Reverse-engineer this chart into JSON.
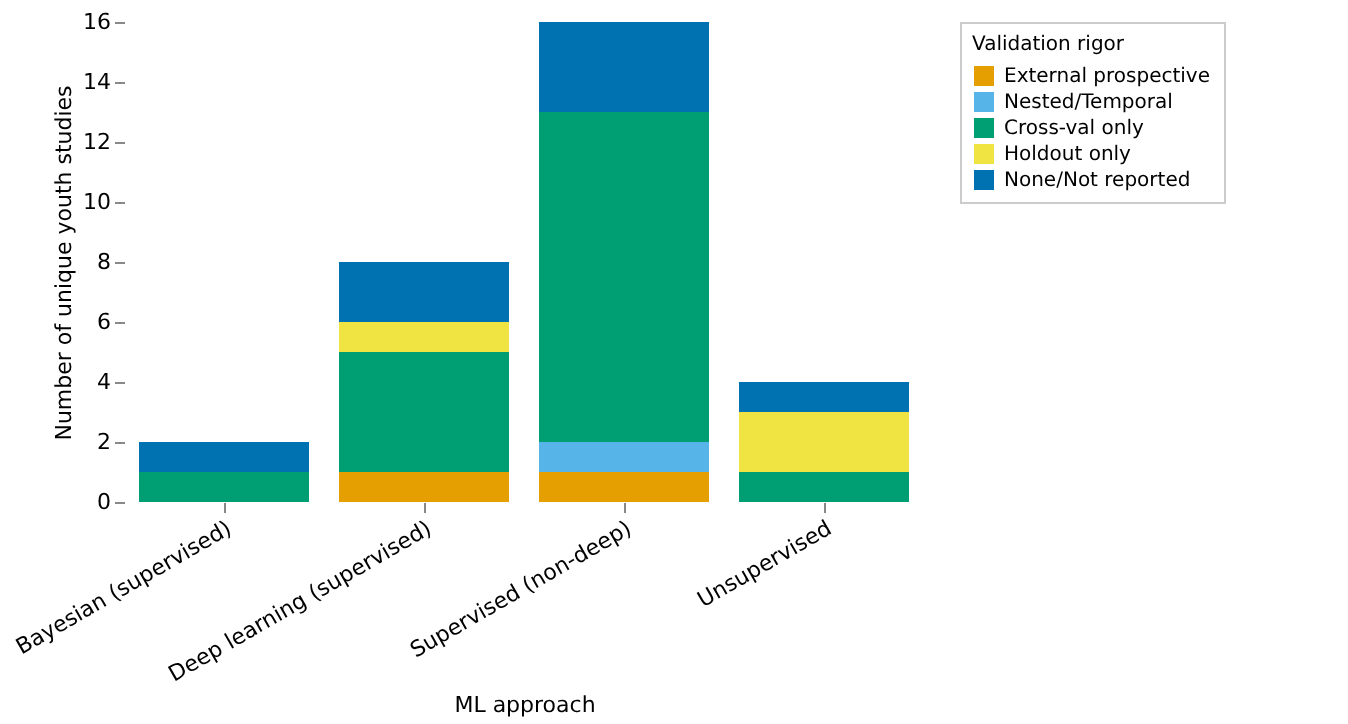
{
  "chart_data": {
    "type": "bar",
    "stacked": true,
    "xlabel": "ML approach",
    "ylabel": "Number of unique youth studies",
    "legend_title": "Validation rigor",
    "legend": "top right",
    "grid": false,
    "categories": [
      "Bayesian (supervised)",
      "Deep learning (supervised)",
      "Supervised (non-deep)",
      "Unsupervised"
    ],
    "ylim": [
      0,
      16
    ],
    "yticks": [
      0,
      2,
      4,
      6,
      8,
      10,
      12,
      14,
      16
    ],
    "series": [
      {
        "name": "External prospective",
        "color": "#e69f00",
        "values": [
          0,
          1,
          1,
          0
        ]
      },
      {
        "name": "Nested/Temporal",
        "color": "#56b4e9",
        "values": [
          0,
          0,
          1,
          0
        ]
      },
      {
        "name": "Cross-val only",
        "color": "#009e73",
        "values": [
          1,
          4,
          11,
          1
        ]
      },
      {
        "name": "Holdout only",
        "color": "#f0e442",
        "values": [
          0,
          1,
          0,
          2
        ]
      },
      {
        "name": "None/Not reported",
        "color": "#0072b2",
        "values": [
          1,
          2,
          3,
          1
        ]
      }
    ]
  }
}
